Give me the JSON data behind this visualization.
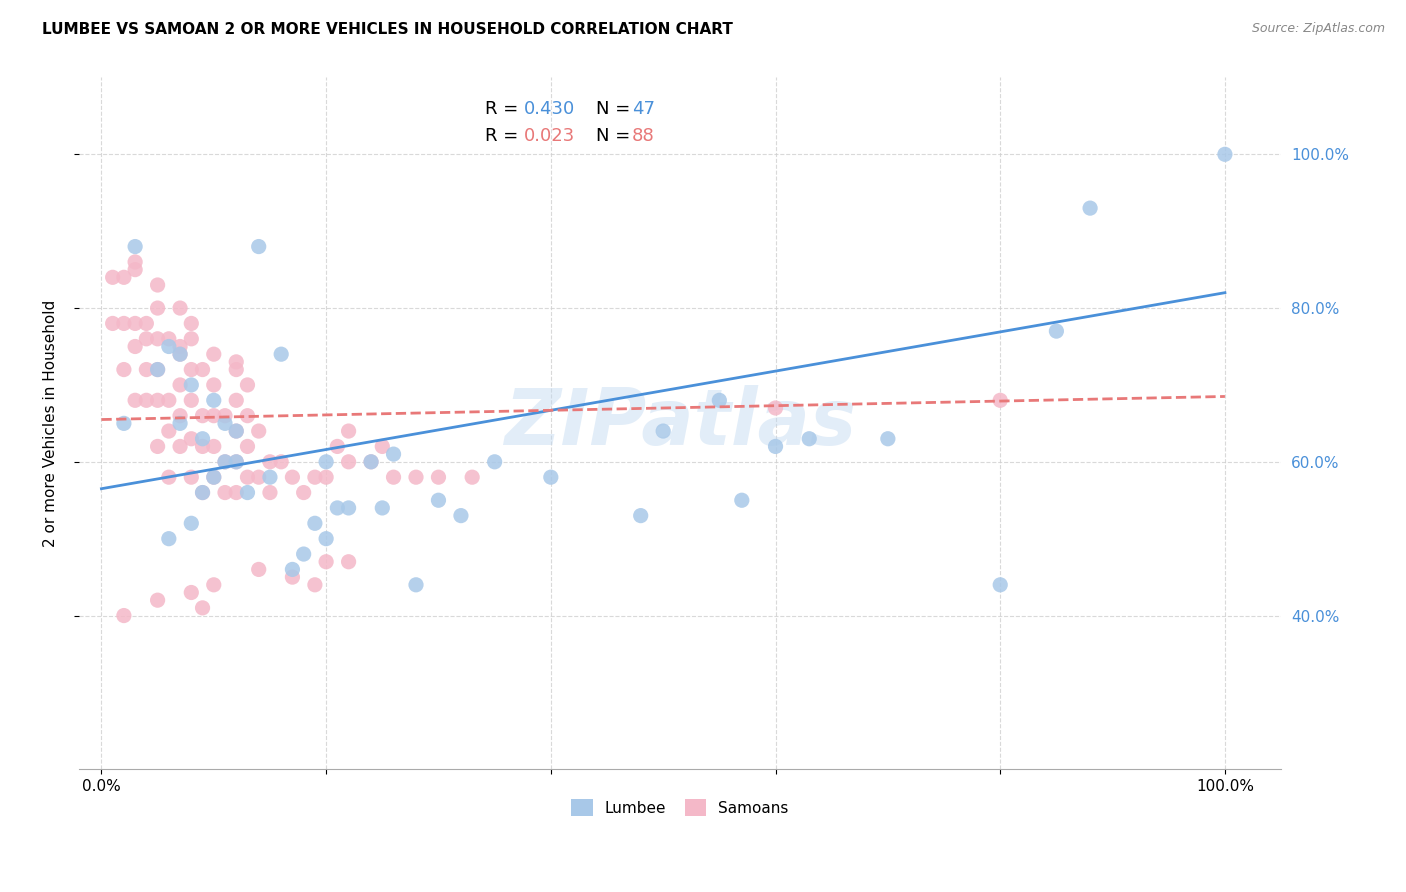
{
  "title": "LUMBEE VS SAMOAN 2 OR MORE VEHICLES IN HOUSEHOLD CORRELATION CHART",
  "source": "Source: ZipAtlas.com",
  "ylabel": "2 or more Vehicles in Household",
  "ytick_labels": [
    "40.0%",
    "60.0%",
    "80.0%",
    "100.0%"
  ],
  "ytick_values": [
    0.4,
    0.6,
    0.8,
    1.0
  ],
  "xlim": [
    -0.02,
    1.05
  ],
  "ylim": [
    0.2,
    1.1
  ],
  "lumbee_R": 0.43,
  "lumbee_N": 47,
  "samoan_R": 0.023,
  "samoan_N": 88,
  "lumbee_color": "#a8c8e8",
  "samoan_color": "#f4b8c8",
  "lumbee_line_color": "#4a90d9",
  "samoan_line_color": "#e87878",
  "legend_label_1": "Lumbee",
  "legend_label_2": "Samoans",
  "watermark": "ZIPatlas",
  "lumbee_x": [
    0.02,
    0.03,
    0.05,
    0.06,
    0.06,
    0.07,
    0.07,
    0.08,
    0.08,
    0.09,
    0.09,
    0.1,
    0.1,
    0.11,
    0.11,
    0.12,
    0.12,
    0.13,
    0.14,
    0.15,
    0.16,
    0.17,
    0.18,
    0.19,
    0.2,
    0.2,
    0.21,
    0.22,
    0.24,
    0.25,
    0.26,
    0.28,
    0.3,
    0.32,
    0.35,
    0.4,
    0.48,
    0.5,
    0.55,
    0.57,
    0.6,
    0.63,
    0.7,
    0.8,
    0.85,
    0.88,
    1.0
  ],
  "lumbee_y": [
    0.65,
    0.88,
    0.72,
    0.5,
    0.75,
    0.65,
    0.74,
    0.52,
    0.7,
    0.56,
    0.63,
    0.58,
    0.68,
    0.6,
    0.65,
    0.6,
    0.64,
    0.56,
    0.88,
    0.58,
    0.74,
    0.46,
    0.48,
    0.52,
    0.5,
    0.6,
    0.54,
    0.54,
    0.6,
    0.54,
    0.61,
    0.44,
    0.55,
    0.53,
    0.6,
    0.58,
    0.53,
    0.64,
    0.68,
    0.55,
    0.62,
    0.63,
    0.63,
    0.44,
    0.77,
    0.93,
    1.0
  ],
  "samoan_x": [
    0.01,
    0.01,
    0.02,
    0.02,
    0.02,
    0.03,
    0.03,
    0.03,
    0.03,
    0.04,
    0.04,
    0.04,
    0.04,
    0.05,
    0.05,
    0.05,
    0.05,
    0.05,
    0.06,
    0.06,
    0.06,
    0.06,
    0.07,
    0.07,
    0.07,
    0.07,
    0.07,
    0.08,
    0.08,
    0.08,
    0.08,
    0.08,
    0.08,
    0.09,
    0.09,
    0.09,
    0.09,
    0.1,
    0.1,
    0.1,
    0.1,
    0.1,
    0.11,
    0.11,
    0.11,
    0.12,
    0.12,
    0.12,
    0.12,
    0.12,
    0.13,
    0.13,
    0.13,
    0.13,
    0.14,
    0.14,
    0.15,
    0.15,
    0.16,
    0.17,
    0.18,
    0.19,
    0.2,
    0.21,
    0.22,
    0.22,
    0.24,
    0.25,
    0.26,
    0.28,
    0.3,
    0.33,
    0.02,
    0.05,
    0.08,
    0.1,
    0.14,
    0.17,
    0.2,
    0.22,
    0.07,
    0.12,
    0.19,
    0.6,
    0.8,
    0.03,
    0.05,
    0.09
  ],
  "samoan_y": [
    0.78,
    0.84,
    0.72,
    0.78,
    0.84,
    0.68,
    0.75,
    0.78,
    0.85,
    0.68,
    0.72,
    0.76,
    0.78,
    0.62,
    0.68,
    0.72,
    0.76,
    0.8,
    0.58,
    0.64,
    0.68,
    0.76,
    0.62,
    0.66,
    0.7,
    0.75,
    0.8,
    0.58,
    0.63,
    0.68,
    0.72,
    0.76,
    0.78,
    0.56,
    0.62,
    0.66,
    0.72,
    0.58,
    0.62,
    0.66,
    0.7,
    0.74,
    0.56,
    0.6,
    0.66,
    0.56,
    0.6,
    0.64,
    0.68,
    0.72,
    0.58,
    0.62,
    0.66,
    0.7,
    0.58,
    0.64,
    0.56,
    0.6,
    0.6,
    0.58,
    0.56,
    0.58,
    0.58,
    0.62,
    0.6,
    0.64,
    0.6,
    0.62,
    0.58,
    0.58,
    0.58,
    0.58,
    0.4,
    0.42,
    0.43,
    0.44,
    0.46,
    0.45,
    0.47,
    0.47,
    0.74,
    0.73,
    0.44,
    0.67,
    0.68,
    0.86,
    0.83,
    0.41
  ],
  "lumbee_line_x0": 0.0,
  "lumbee_line_x1": 1.0,
  "lumbee_line_y0": 0.565,
  "lumbee_line_y1": 0.82,
  "samoan_line_x0": 0.0,
  "samoan_line_x1": 1.0,
  "samoan_line_y0": 0.655,
  "samoan_line_y1": 0.685
}
